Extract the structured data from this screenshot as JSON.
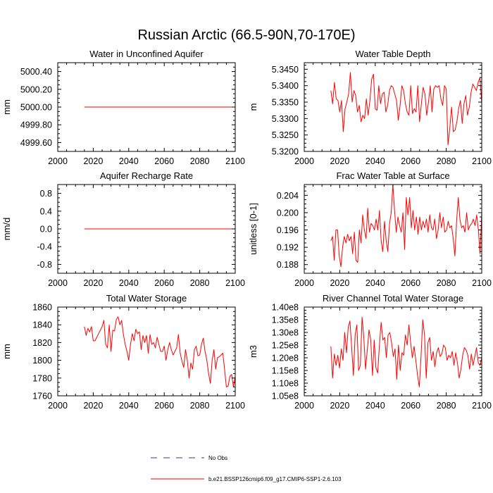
{
  "figure": {
    "title": "Russian Arctic (66.5-90N,70-170E)",
    "line_color": "#ff0000",
    "obs_color": "#3b33a8"
  },
  "legend": {
    "obs_label": "No Obs",
    "model_label": "b.e21.BSSP126cmip6.f09_g17.CMIP6-SSP1-2.6.103"
  },
  "chart_data": [
    {
      "type": "line",
      "title": "Water in Unconfined Aquifer",
      "xlabel": "",
      "ylabel": "mm",
      "xlim": [
        2000,
        2100
      ],
      "ylim": [
        4999.5,
        5000.5
      ],
      "xticks": [
        2000,
        2020,
        2040,
        2060,
        2080,
        2100
      ],
      "yticks": [
        4999.6,
        4999.8,
        5000.0,
        5000.2,
        5000.4
      ],
      "ytick_labels": [
        "4999.60",
        "4999.80",
        "5000.00",
        "5000.20",
        "5000.40"
      ],
      "series": [
        {
          "name": "b.e21.BSSP126cmip6.f09_g17.CMIP6-SSP1-2.6.103",
          "x_start": 2015,
          "x_end": 2100,
          "values": [
            5000,
            5000,
            5000,
            5000,
            5000,
            5000,
            5000,
            5000,
            5000,
            5000,
            5000,
            5000,
            5000,
            5000,
            5000,
            5000,
            5000,
            5000,
            5000,
            5000,
            5000,
            5000,
            5000,
            5000,
            5000,
            5000,
            5000,
            5000,
            5000,
            5000,
            5000,
            5000,
            5000,
            5000,
            5000,
            5000,
            5000,
            5000,
            5000,
            5000,
            5000,
            5000,
            5000,
            5000,
            5000,
            5000,
            5000,
            5000,
            5000,
            5000,
            5000,
            5000,
            5000,
            5000,
            5000,
            5000,
            5000,
            5000,
            5000,
            5000,
            5000,
            5000,
            5000,
            5000,
            5000,
            5000,
            5000,
            5000,
            5000,
            5000,
            5000,
            5000,
            5000,
            5000,
            5000,
            5000,
            5000,
            5000,
            5000,
            5000,
            5000,
            5000,
            5000,
            5000,
            5000,
            5000
          ]
        }
      ]
    },
    {
      "type": "line",
      "title": "Water Table Depth",
      "xlabel": "",
      "ylabel": "m",
      "xlim": [
        2000,
        2100
      ],
      "ylim": [
        5.32,
        5.347
      ],
      "xticks": [
        2000,
        2020,
        2040,
        2060,
        2080,
        2100
      ],
      "yticks": [
        5.32,
        5.325,
        5.33,
        5.335,
        5.34,
        5.345
      ],
      "ytick_labels": [
        "5.3200",
        "5.3250",
        "5.3300",
        "5.3350",
        "5.3400",
        "5.3450"
      ],
      "series": [
        {
          "name": "b.e21.BSSP126cmip6.f09_g17.CMIP6-SSP1-2.6.103",
          "x_start": 2015,
          "x_end": 2100,
          "values": [
            5.3385,
            5.3345,
            5.341,
            5.336,
            5.3355,
            5.332,
            5.3355,
            5.326,
            5.333,
            5.335,
            5.3375,
            5.344,
            5.335,
            5.3385,
            5.337,
            5.332,
            5.334,
            5.329,
            5.331,
            5.33,
            5.336,
            5.331,
            5.3355,
            5.342,
            5.3435,
            5.333,
            5.3325,
            5.34,
            5.3345,
            5.3375,
            5.338,
            5.332,
            5.334,
            5.3385,
            5.34,
            5.3395,
            5.3375,
            5.3355,
            5.3295,
            5.334,
            5.34,
            5.3385,
            5.3345,
            5.332,
            5.331,
            5.34,
            5.3315,
            5.333,
            5.332,
            5.34,
            5.329,
            5.3345,
            5.3395,
            5.3375,
            5.331,
            5.335,
            5.34,
            5.332,
            5.339,
            5.34,
            5.3395,
            5.34,
            5.336,
            5.334,
            5.34,
            5.339,
            5.322,
            5.327,
            5.3335,
            5.326,
            5.3265,
            5.329,
            5.333,
            5.3355,
            5.3285,
            5.3345,
            5.337,
            5.331,
            5.3335,
            5.338,
            5.3405,
            5.3395,
            5.3385,
            5.341,
            5.3425,
            5.3345
          ]
        }
      ]
    },
    {
      "type": "line",
      "title": "Aquifer Recharge Rate",
      "xlabel": "",
      "ylabel": "mm/d",
      "xlim": [
        2000,
        2100
      ],
      "ylim": [
        -1.0,
        1.0
      ],
      "xticks": [
        2000,
        2020,
        2040,
        2060,
        2080,
        2100
      ],
      "yticks": [
        -0.8,
        -0.4,
        0.0,
        0.4,
        0.8
      ],
      "ytick_labels": [
        "-0.8",
        "-0.4",
        "0.0",
        "0.4",
        "0.8"
      ],
      "series": [
        {
          "name": "b.e21.BSSP126cmip6.f09_g17.CMIP6-SSP1-2.6.103",
          "x_start": 2015,
          "x_end": 2100,
          "values": [
            0,
            0,
            0,
            0,
            0,
            0,
            0,
            0,
            0,
            0,
            0,
            0,
            0,
            0,
            0,
            0,
            0,
            0,
            0,
            0,
            0,
            0,
            0,
            0,
            0,
            0,
            0,
            0,
            0,
            0,
            0,
            0,
            0,
            0,
            0,
            0,
            0,
            0,
            0,
            0,
            0,
            0,
            0,
            0,
            0,
            0,
            0,
            0,
            0,
            0,
            0,
            0,
            0,
            0,
            0,
            0,
            0,
            0,
            0,
            0,
            0,
            0,
            0,
            0,
            0,
            0,
            0,
            0,
            0,
            0,
            0,
            0,
            0,
            0,
            0,
            0,
            0,
            0,
            0,
            0,
            0,
            0,
            0,
            0,
            0,
            0
          ]
        }
      ]
    },
    {
      "type": "line",
      "title": "Frac Water Table at Surface",
      "xlabel": "",
      "ylabel": "unitless [0-1]",
      "xlim": [
        2000,
        2100
      ],
      "ylim": [
        0.186,
        0.2065
      ],
      "xticks": [
        2000,
        2020,
        2040,
        2060,
        2080,
        2100
      ],
      "yticks": [
        0.188,
        0.192,
        0.196,
        0.2,
        0.204
      ],
      "ytick_labels": [
        "0.188",
        "0.192",
        "0.196",
        "0.200",
        "0.204"
      ],
      "series": [
        {
          "name": "b.e21.BSSP126cmip6.f09_g17.CMIP6-SSP1-2.6.103",
          "x_start": 2015,
          "x_end": 2100,
          "values": [
            0.1935,
            0.1945,
            0.189,
            0.196,
            0.196,
            0.19,
            0.1875,
            0.192,
            0.1945,
            0.193,
            0.195,
            0.1935,
            0.1945,
            0.1905,
            0.1955,
            0.189,
            0.1885,
            0.196,
            0.193,
            0.1995,
            0.196,
            0.194,
            0.201,
            0.1955,
            0.1975,
            0.197,
            0.196,
            0.1985,
            0.196,
            0.2005,
            0.1935,
            0.191,
            0.198,
            0.1935,
            0.191,
            0.1975,
            0.2,
            0.2065,
            0.2005,
            0.1955,
            0.199,
            0.197,
            0.1955,
            0.2,
            0.1915,
            0.2035,
            0.1995,
            0.2035,
            0.1965,
            0.2005,
            0.196,
            0.199,
            0.195,
            0.199,
            0.196,
            0.198,
            0.1965,
            0.1985,
            0.1955,
            0.1995,
            0.1965,
            0.196,
            0.1985,
            0.194,
            0.196,
            0.2,
            0.1965,
            0.199,
            0.1955,
            0.196,
            0.198,
            0.1965,
            0.197,
            0.194,
            0.19,
            0.198,
            0.2035,
            0.1985,
            0.1965,
            0.197,
            0.1955,
            0.2,
            0.196,
            0.197,
            0.1975,
            0.1985,
            0.197,
            0.1995,
            0.196,
            0.1905,
            0.2
          ]
        }
      ]
    },
    {
      "type": "line",
      "title": "Total Water Storage",
      "xlabel": "",
      "ylabel": "mm",
      "xlim": [
        2000,
        2100
      ],
      "ylim": [
        1760,
        1860
      ],
      "xticks": [
        2000,
        2020,
        2040,
        2060,
        2080,
        2100
      ],
      "yticks": [
        1760,
        1780,
        1800,
        1820,
        1840,
        1860
      ],
      "ytick_labels": [
        "1760",
        "1780",
        "1800",
        "1820",
        "1840",
        "1860"
      ],
      "series": [
        {
          "name": "b.e21.BSSP126cmip6.f09_g17.CMIP6-SSP1-2.6.103",
          "x_start": 2015,
          "x_end": 2100,
          "values": [
            1838,
            1828,
            1836,
            1832,
            1838,
            1822,
            1822,
            1826,
            1830,
            1834,
            1838,
            1845,
            1818,
            1814,
            1840,
            1810,
            1834,
            1833,
            1846,
            1849,
            1840,
            1845,
            1829,
            1818,
            1810,
            1800,
            1818,
            1830,
            1822,
            1835,
            1830,
            1832,
            1812,
            1828,
            1820,
            1828,
            1808,
            1829,
            1818,
            1820,
            1814,
            1826,
            1818,
            1810,
            1810,
            1816,
            1800,
            1812,
            1820,
            1812,
            1806,
            1810,
            1814,
            1829,
            1808,
            1799,
            1792,
            1812,
            1800,
            1780,
            1797,
            1790,
            1812,
            1816,
            1805,
            1806,
            1818,
            1825,
            1810,
            1800,
            1785,
            1774,
            1800,
            1812,
            1790,
            1803,
            1804,
            1806,
            1808,
            1790,
            1770,
            1771,
            1782,
            1784,
            1770,
            1782
          ]
        }
      ]
    },
    {
      "type": "line",
      "title": "River Channel Total Water Storage",
      "xlabel": "",
      "ylabel": "m3",
      "xlim": [
        2000,
        2100
      ],
      "ylim": [
        105000000,
        140000000
      ],
      "xticks": [
        2000,
        2020,
        2040,
        2060,
        2080,
        2100
      ],
      "yticks": [
        105000000,
        110000000,
        115000000,
        120000000,
        125000000,
        130000000,
        135000000,
        140000000
      ],
      "ytick_labels": [
        "1.05e8",
        "1.10e8",
        "1.15e8",
        "1.20e8",
        "1.25e8",
        "1.30e8",
        "1.35e8",
        "1.40e8"
      ],
      "series": [
        {
          "name": "b.e21.BSSP126cmip6.f09_g17.CMIP6-SSP1-2.6.103",
          "x_start": 2015,
          "x_end": 2100,
          "values": [
            124500000,
            112000000,
            121500000,
            117000000,
            121000000,
            116000000,
            123500000,
            119000000,
            130000000,
            122000000,
            132000000,
            134500000,
            124000000,
            113000000,
            129000000,
            133000000,
            115000000,
            117000000,
            136000000,
            128000000,
            115500000,
            123000000,
            131000000,
            127000000,
            113000000,
            127000000,
            116000000,
            114000000,
            125000000,
            134000000,
            127000000,
            128000000,
            120000000,
            129000000,
            130000000,
            126000000,
            120500000,
            123500000,
            111500000,
            125000000,
            115000000,
            122000000,
            121000000,
            129000000,
            125000000,
            133000000,
            126000000,
            120000000,
            124500000,
            119000000,
            113000000,
            108500000,
            120500000,
            135000000,
            129000000,
            112000000,
            126000000,
            128000000,
            119000000,
            122500000,
            116500000,
            122000000,
            124000000,
            120500000,
            121500000,
            125000000,
            124000000,
            119000000,
            121000000,
            120000000,
            122500000,
            117000000,
            122000000,
            118000000,
            112000000,
            115500000,
            121000000,
            124000000,
            123000000,
            121000000,
            115500000,
            121500000,
            117000000,
            120500000,
            124000000,
            118000000,
            117000000,
            120000000
          ]
        }
      ]
    }
  ]
}
